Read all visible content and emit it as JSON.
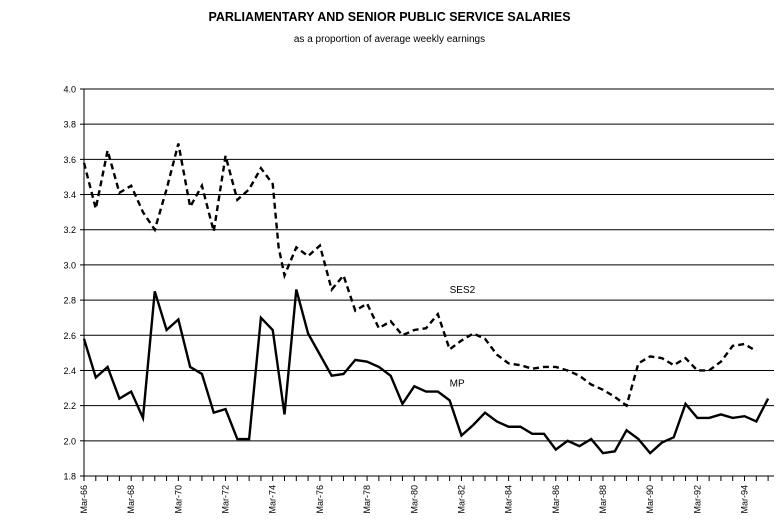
{
  "chart_data": {
    "type": "line",
    "title": "PARLIAMENTARY AND SENIOR PUBLIC SERVICE SALARIES",
    "subtitle": "as a proportion of average weekly earnings",
    "xlabel": "",
    "ylabel": "",
    "ylim": [
      1.8,
      4.0
    ],
    "yticks": [
      "1.8",
      "2.0",
      "2.2",
      "2.4",
      "2.6",
      "2.8",
      "3.0",
      "3.2",
      "3.4",
      "3.6",
      "3.8",
      "4.0"
    ],
    "xlim": [
      1966.0,
      1995.25
    ],
    "xticks": [
      {
        "label": "Mar-66",
        "x": 1966
      },
      {
        "label": "Mar-68",
        "x": 1968
      },
      {
        "label": "Mar-70",
        "x": 1970
      },
      {
        "label": "Mar-72",
        "x": 1972
      },
      {
        "label": "Mar-74",
        "x": 1974
      },
      {
        "label": "Mar-76",
        "x": 1976
      },
      {
        "label": "Mar-78",
        "x": 1978
      },
      {
        "label": "Mar-80",
        "x": 1980
      },
      {
        "label": "Mar-82",
        "x": 1982
      },
      {
        "label": "Mar-84",
        "x": 1984
      },
      {
        "label": "Mar-86",
        "x": 1986
      },
      {
        "label": "Mar-88",
        "x": 1988
      },
      {
        "label": "Mar-90",
        "x": 1990
      },
      {
        "label": "Mar-92",
        "x": 1992
      },
      {
        "label": "Mar-94",
        "x": 1994
      }
    ],
    "grid": "horizontal",
    "series": [
      {
        "name": "SES2",
        "style": "dashed",
        "color": "#000000",
        "points": [
          [
            1966.0,
            3.58
          ],
          [
            1966.25,
            3.45
          ],
          [
            1966.5,
            3.32
          ],
          [
            1967.0,
            3.65
          ],
          [
            1967.5,
            3.41
          ],
          [
            1968.0,
            3.45
          ],
          [
            1968.5,
            3.3
          ],
          [
            1969.0,
            3.2
          ],
          [
            1969.5,
            3.43
          ],
          [
            1970.0,
            3.69
          ],
          [
            1970.5,
            3.33
          ],
          [
            1971.0,
            3.45
          ],
          [
            1971.5,
            3.19
          ],
          [
            1972.0,
            3.62
          ],
          [
            1972.5,
            3.37
          ],
          [
            1973.0,
            3.43
          ],
          [
            1973.5,
            3.55
          ],
          [
            1974.0,
            3.46
          ],
          [
            1974.25,
            3.1
          ],
          [
            1974.5,
            2.94
          ],
          [
            1975.0,
            3.1
          ],
          [
            1975.5,
            3.05
          ],
          [
            1976.0,
            3.11
          ],
          [
            1976.5,
            2.86
          ],
          [
            1977.0,
            2.94
          ],
          [
            1977.5,
            2.74
          ],
          [
            1978.0,
            2.78
          ],
          [
            1978.5,
            2.64
          ],
          [
            1979.0,
            2.68
          ],
          [
            1979.5,
            2.6
          ],
          [
            1980.0,
            2.63
          ],
          [
            1980.5,
            2.64
          ],
          [
            1981.0,
            2.72
          ],
          [
            1981.5,
            2.52
          ],
          [
            1982.0,
            2.57
          ],
          [
            1982.5,
            2.61
          ],
          [
            1983.0,
            2.58
          ],
          [
            1983.5,
            2.49
          ],
          [
            1984.0,
            2.44
          ],
          [
            1984.5,
            2.43
          ],
          [
            1985.0,
            2.41
          ],
          [
            1985.5,
            2.42
          ],
          [
            1986.0,
            2.42
          ],
          [
            1986.5,
            2.4
          ],
          [
            1987.0,
            2.37
          ],
          [
            1987.5,
            2.32
          ],
          [
            1988.0,
            2.29
          ],
          [
            1988.5,
            2.25
          ],
          [
            1989.0,
            2.2
          ],
          [
            1989.5,
            2.44
          ],
          [
            1990.0,
            2.48
          ],
          [
            1990.5,
            2.47
          ],
          [
            1991.0,
            2.43
          ],
          [
            1991.5,
            2.47
          ],
          [
            1992.0,
            2.4
          ],
          [
            1992.5,
            2.4
          ],
          [
            1993.0,
            2.45
          ],
          [
            1993.5,
            2.54
          ],
          [
            1994.0,
            2.55
          ],
          [
            1994.5,
            2.51
          ]
        ]
      },
      {
        "name": "MP",
        "style": "solid",
        "color": "#000000",
        "points": [
          [
            1966.0,
            2.58
          ],
          [
            1966.5,
            2.36
          ],
          [
            1967.0,
            2.42
          ],
          [
            1967.5,
            2.24
          ],
          [
            1968.0,
            2.28
          ],
          [
            1968.5,
            2.13
          ],
          [
            1969.0,
            2.85
          ],
          [
            1969.5,
            2.63
          ],
          [
            1970.0,
            2.69
          ],
          [
            1970.5,
            2.42
          ],
          [
            1971.0,
            2.38
          ],
          [
            1971.5,
            2.16
          ],
          [
            1972.0,
            2.18
          ],
          [
            1972.5,
            2.01
          ],
          [
            1973.0,
            2.01
          ],
          [
            1973.5,
            2.7
          ],
          [
            1974.0,
            2.63
          ],
          [
            1974.5,
            2.15
          ],
          [
            1975.0,
            2.86
          ],
          [
            1975.5,
            2.61
          ],
          [
            1976.0,
            2.49
          ],
          [
            1976.5,
            2.37
          ],
          [
            1977.0,
            2.38
          ],
          [
            1977.5,
            2.46
          ],
          [
            1978.0,
            2.45
          ],
          [
            1978.5,
            2.42
          ],
          [
            1979.0,
            2.37
          ],
          [
            1979.5,
            2.21
          ],
          [
            1980.0,
            2.31
          ],
          [
            1980.5,
            2.28
          ],
          [
            1981.0,
            2.28
          ],
          [
            1981.5,
            2.23
          ],
          [
            1982.0,
            2.03
          ],
          [
            1982.5,
            2.09
          ],
          [
            1983.0,
            2.16
          ],
          [
            1983.5,
            2.11
          ],
          [
            1984.0,
            2.08
          ],
          [
            1984.5,
            2.08
          ],
          [
            1985.0,
            2.04
          ],
          [
            1985.5,
            2.04
          ],
          [
            1986.0,
            1.95
          ],
          [
            1986.5,
            2.0
          ],
          [
            1987.0,
            1.97
          ],
          [
            1987.5,
            2.01
          ],
          [
            1988.0,
            1.93
          ],
          [
            1988.5,
            1.94
          ],
          [
            1989.0,
            2.06
          ],
          [
            1989.5,
            2.01
          ],
          [
            1990.0,
            1.93
          ],
          [
            1990.5,
            1.99
          ],
          [
            1991.0,
            2.02
          ],
          [
            1991.5,
            2.21
          ],
          [
            1992.0,
            2.13
          ],
          [
            1992.5,
            2.13
          ],
          [
            1993.0,
            2.15
          ],
          [
            1993.5,
            2.13
          ],
          [
            1994.0,
            2.14
          ],
          [
            1994.5,
            2.11
          ],
          [
            1995.0,
            2.24
          ]
        ]
      }
    ],
    "annotations": [
      {
        "text": "SES2",
        "x": 1981.5,
        "y": 2.84
      },
      {
        "text": "MP",
        "x": 1981.5,
        "y": 2.31
      }
    ]
  }
}
